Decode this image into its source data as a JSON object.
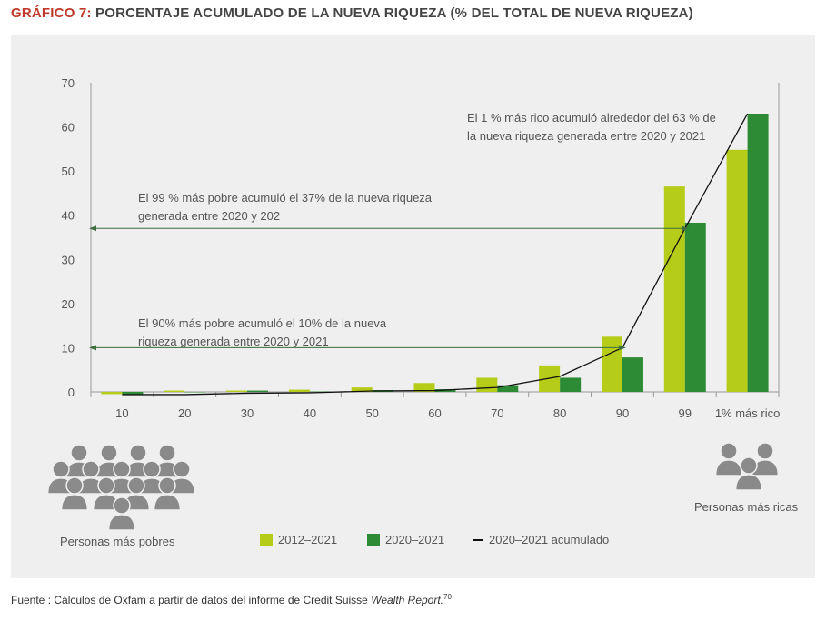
{
  "title_prefix": "GRÁFICO 7:",
  "title": "PORCENTAJE ACUMULADO DE LA NUEVA RIQUEZA (% DEL TOTAL DE NUEVA RIQUEZA)",
  "source_prefix": "Fuente : Cálculos de Oxfam a partir de datos del informe de Credit Suisse ",
  "source_italic": "Wealth Report.",
  "source_sup": "70",
  "left_caption": "Personas más pobres",
  "right_caption": "Personas más ricas",
  "icons": {
    "left": "people-group-icon",
    "right": "people-small-group-icon"
  },
  "chart_data": {
    "type": "bar",
    "categories": [
      "10",
      "20",
      "30",
      "40",
      "50",
      "60",
      "70",
      "80",
      "90",
      "99",
      "1% más rico"
    ],
    "ylim": [
      0,
      70
    ],
    "yticks": [
      0,
      10,
      20,
      30,
      40,
      50,
      60,
      70
    ],
    "grid": false,
    "legend_placement": "bottom",
    "series": [
      {
        "name": "2012–2021",
        "type": "bar",
        "color": "#b5cc18",
        "values": [
          -0.5,
          0.3,
          0.3,
          0.5,
          1.0,
          2.0,
          3.2,
          6.0,
          12.5,
          46.5,
          54.8
        ]
      },
      {
        "name": "2020–2021",
        "type": "bar",
        "color": "#2e8b35",
        "values": [
          -0.6,
          0,
          0.3,
          0.1,
          0.4,
          0.6,
          1.5,
          3.2,
          7.8,
          38.3,
          63
        ]
      },
      {
        "name": "2020–2021 acumulado",
        "type": "line",
        "color": "#111111",
        "values": [
          -0.6,
          -0.6,
          -0.3,
          -0.2,
          0.2,
          0.3,
          1.0,
          3.5,
          10,
          37,
          63
        ]
      }
    ],
    "annotations": [
      {
        "text": [
          "El 1 % más rico acumuló alrededor del 63 % de",
          "la nueva riqueza generada entre 2020 y 2021"
        ]
      },
      {
        "text": [
          "El 99 % más pobre acumuló el 37% de la nueva riqueza",
          "generada entre 2020 y 202"
        ],
        "arrow_value": 37
      },
      {
        "text": [
          "El 90% más pobre acumuló el 10% de la nueva",
          "riqueza generada entre 2020 y 2021"
        ],
        "arrow_value": 10
      }
    ]
  }
}
